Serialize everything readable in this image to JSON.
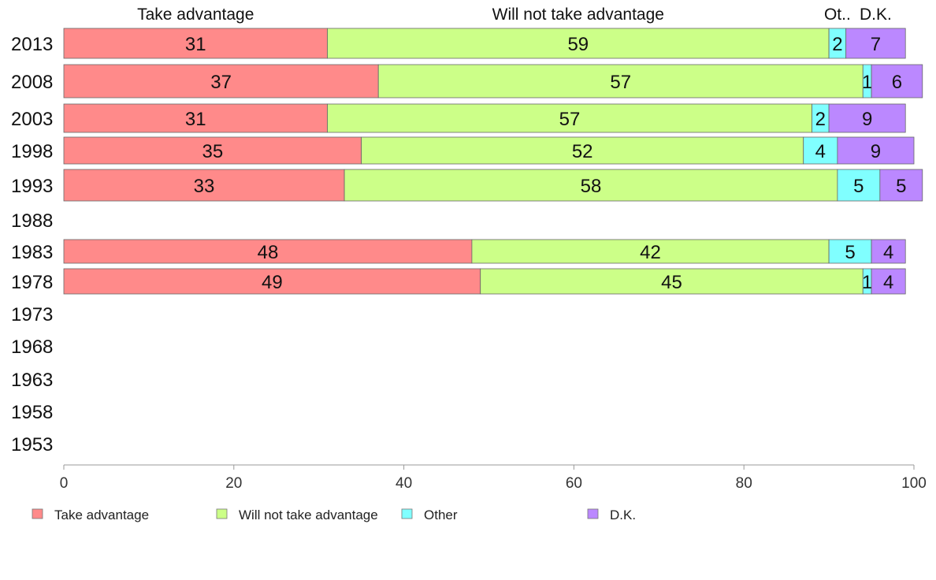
{
  "chart_data": {
    "type": "bar",
    "orientation": "horizontal",
    "stacked": true,
    "xlim": [
      0,
      100
    ],
    "x_ticks": [
      "0",
      "20",
      "40",
      "60",
      "80",
      "100"
    ],
    "categories": [
      "2013",
      "2008",
      "2003",
      "1998",
      "1993",
      "1988",
      "1983",
      "1978",
      "1973",
      "1968",
      "1963",
      "1958",
      "1953"
    ],
    "column_headers": [
      "Take advantage",
      "Will not take advantage",
      "Ot..",
      "D.K."
    ],
    "series": [
      {
        "name": "Take advantage",
        "color": "#ff8a8a",
        "values": [
          31,
          37,
          31,
          35,
          33,
          null,
          48,
          49,
          null,
          null,
          null,
          null,
          null
        ]
      },
      {
        "name": "Will not take advantage",
        "color": "#ccff88",
        "values": [
          59,
          57,
          57,
          52,
          58,
          null,
          42,
          45,
          null,
          null,
          null,
          null,
          null
        ]
      },
      {
        "name": "Other",
        "color": "#80ffff",
        "values": [
          2,
          1,
          2,
          4,
          5,
          null,
          5,
          1,
          null,
          null,
          null,
          null,
          null
        ]
      },
      {
        "name": "D.K.",
        "color": "#bb88ff",
        "values": [
          7,
          6,
          9,
          9,
          5,
          null,
          4,
          4,
          null,
          null,
          null,
          null,
          null
        ]
      }
    ],
    "legend_position": "bottom",
    "grid": false
  }
}
